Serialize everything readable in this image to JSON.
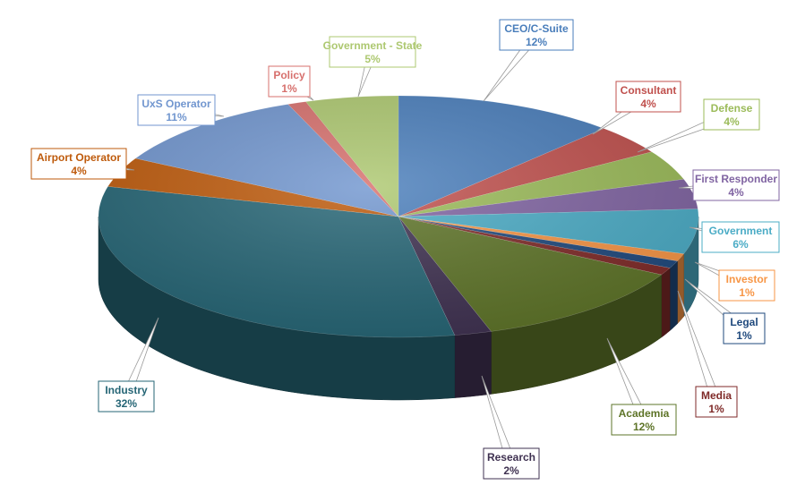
{
  "chart_data": {
    "type": "pie",
    "three_d": true,
    "title": "",
    "legend": "none",
    "categories": [
      "CEO/C-Suite",
      "Consultant",
      "Defense",
      "First Responder",
      "Government",
      "Investor",
      "Legal",
      "Media",
      "Academia",
      "Research",
      "Industry",
      "Airport Operator",
      "UxS Operator",
      "Policy",
      "Government - State"
    ],
    "values": [
      12,
      4,
      4,
      4,
      6,
      1,
      1,
      1,
      12,
      2,
      32,
      4,
      11,
      1,
      5
    ],
    "value_labels": [
      "12%",
      "4%",
      "4%",
      "4%",
      "6%",
      "1%",
      "1%",
      "1%",
      "12%",
      "2%",
      "32%",
      "4%",
      "11%",
      "1%",
      "5%"
    ],
    "colors": [
      "#4A7EBB",
      "#C0504D",
      "#9BBB59",
      "#8064A2",
      "#4BACC6",
      "#F79646",
      "#1F497D",
      "#7F2A28",
      "#5E7428",
      "#3F3151",
      "#256575",
      "#BE5A0B",
      "#7196CF",
      "#D7706D",
      "#ADC870"
    ],
    "label_colors": [
      "#4A7EBB",
      "#C0504D",
      "#9BBB59",
      "#8064A2",
      "#4BACC6",
      "#F79646",
      "#1F497D",
      "#7F2A28",
      "#5E7428",
      "#3F3151",
      "#256575",
      "#BE5A0B",
      "#7196CF",
      "#D7706D",
      "#ADC870"
    ]
  }
}
